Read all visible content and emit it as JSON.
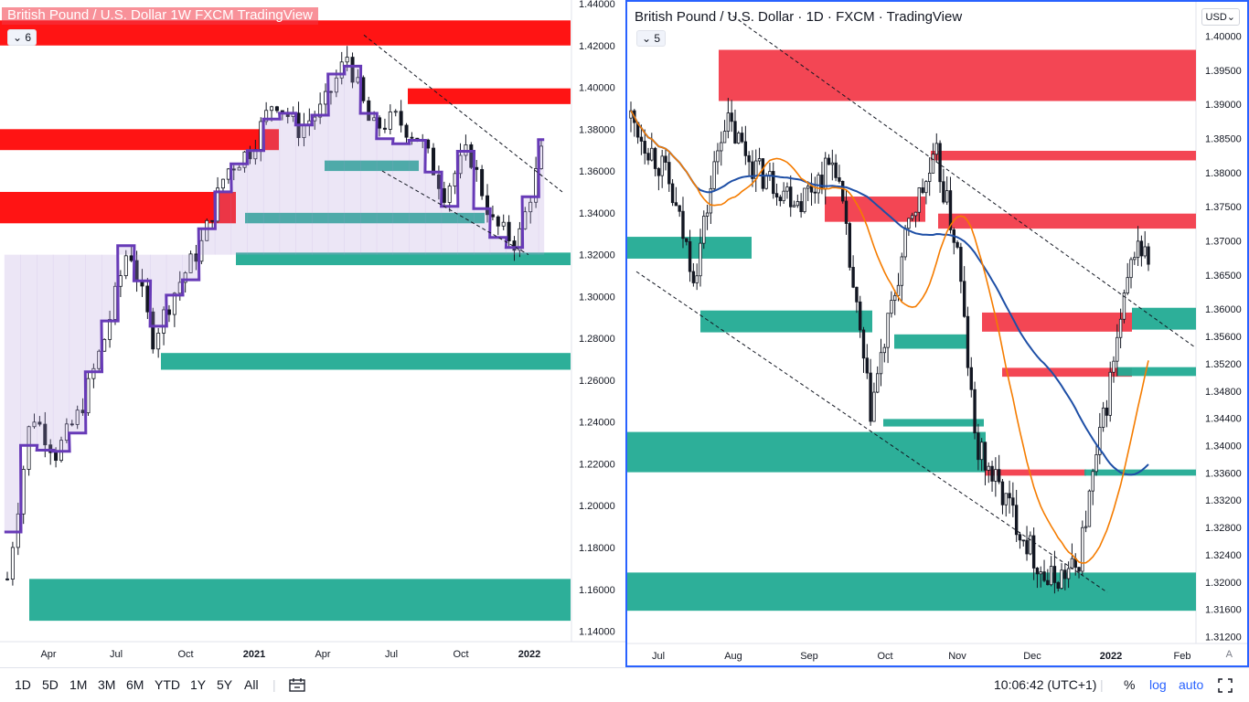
{
  "left": {
    "legend": "British Pound / U.S. Dollar   1W   FXCM   TradingView",
    "badge": "6",
    "y_labels": [
      "1.44000",
      "1.42000",
      "1.40000",
      "1.38000",
      "1.36000",
      "1.34000",
      "1.32000",
      "1.30000",
      "1.28000",
      "1.26000",
      "1.24000",
      "1.22000",
      "1.20000",
      "1.18000",
      "1.16000",
      "1.14000"
    ],
    "x_labels": [
      "Apr",
      "Jul",
      "Oct",
      "2021",
      "Apr",
      "Jul",
      "Oct",
      "2022"
    ]
  },
  "right": {
    "legend": "British Pound / U.S. Dollar · 1D · FXCM · TradingView",
    "badge": "5",
    "currency": "USD",
    "auto_label": "A",
    "y_labels": [
      "1.40000",
      "1.39500",
      "1.39000",
      "1.38500",
      "1.38000",
      "1.37500",
      "1.37000",
      "1.36500",
      "1.36000",
      "1.35600",
      "1.35200",
      "1.34800",
      "1.34400",
      "1.34000",
      "1.33600",
      "1.33200",
      "1.32800",
      "1.32400",
      "1.32000",
      "1.31600",
      "1.31200"
    ],
    "x_labels": [
      "Jul",
      "Aug",
      "Sep",
      "Oct",
      "Nov",
      "Dec",
      "2022",
      "Feb"
    ]
  },
  "bottom": {
    "timeframes": [
      "1D",
      "5D",
      "1M",
      "3M",
      "6M",
      "YTD",
      "1Y",
      "5Y",
      "All"
    ],
    "compare_icon": "calendar-range-icon",
    "clock": "10:06:42 (UTC+1)",
    "percent": "%",
    "log": "log",
    "auto": "auto",
    "fullscreen_icon": "fullscreen-icon"
  },
  "colors": {
    "supply": "#f23645",
    "demand": "#22ab94",
    "ma_fast": "#f57c00",
    "ma_slow": "#1e4fa6",
    "heikin": "#673ab7",
    "candle": "#131722"
  },
  "chart_data": [
    {
      "type": "candlestick",
      "timeframe": "1W",
      "symbol": "GBPUSD",
      "ylim": [
        1.135,
        1.44
      ],
      "x_ticks": [
        "Apr",
        "Jul",
        "Oct",
        "2021",
        "Apr",
        "Jul",
        "Oct",
        "2022"
      ],
      "close_path": [
        [
          "2020-03",
          1.165
        ],
        [
          "2020-04",
          1.245
        ],
        [
          "2020-05",
          1.225
        ],
        [
          "2020-06",
          1.245
        ],
        [
          "2020-07",
          1.28
        ],
        [
          "2020-08",
          1.325
        ],
        [
          "2020-09",
          1.28
        ],
        [
          "2020-10",
          1.305
        ],
        [
          "2020-11",
          1.325
        ],
        [
          "2020-12",
          1.36
        ],
        [
          "2021-01",
          1.37
        ],
        [
          "2021-02",
          1.395
        ],
        [
          "2021-03",
          1.38
        ],
        [
          "2021-04",
          1.39
        ],
        [
          "2021-05",
          1.415
        ],
        [
          "2021-06",
          1.38
        ],
        [
          "2021-07",
          1.385
        ],
        [
          "2021-08",
          1.375
        ],
        [
          "2021-09",
          1.35
        ],
        [
          "2021-10",
          1.37
        ],
        [
          "2021-11",
          1.335
        ],
        [
          "2021-12",
          1.325
        ],
        [
          "2022-01",
          1.368
        ]
      ],
      "zones": [
        {
          "kind": "supply",
          "top": 1.432,
          "bottom": 1.42
        },
        {
          "kind": "supply",
          "top": 1.3995,
          "bottom": 1.392
        },
        {
          "kind": "supply",
          "top": 1.38,
          "bottom": 1.37
        },
        {
          "kind": "supply",
          "top": 1.35,
          "bottom": 1.335
        },
        {
          "kind": "demand",
          "top": 1.365,
          "bottom": 1.36
        },
        {
          "kind": "demand",
          "top": 1.34,
          "bottom": 1.335
        },
        {
          "kind": "demand",
          "top": 1.321,
          "bottom": 1.315
        },
        {
          "kind": "demand",
          "top": 1.273,
          "bottom": 1.265
        },
        {
          "kind": "demand",
          "top": 1.165,
          "bottom": 1.145
        }
      ]
    },
    {
      "type": "candlestick",
      "timeframe": "1D",
      "symbol": "GBPUSD",
      "ylim": [
        1.311,
        1.4045
      ],
      "x_ticks": [
        "Jul",
        "Aug",
        "Sep",
        "Oct",
        "Nov",
        "Dec",
        "2022",
        "Feb"
      ],
      "close_path": [
        [
          "2021-06-25",
          1.388
        ],
        [
          "2021-07-08",
          1.38
        ],
        [
          "2021-07-20",
          1.365
        ],
        [
          "2021-08-01",
          1.388
        ],
        [
          "2021-08-15",
          1.38
        ],
        [
          "2021-09-01",
          1.376
        ],
        [
          "2021-09-15",
          1.382
        ],
        [
          "2021-09-29",
          1.345
        ],
        [
          "2021-10-15",
          1.374
        ],
        [
          "2021-10-25",
          1.382
        ],
        [
          "2021-11-03",
          1.368
        ],
        [
          "2021-11-10",
          1.34
        ],
        [
          "2021-11-25",
          1.33
        ],
        [
          "2021-12-08",
          1.32
        ],
        [
          "2021-12-20",
          1.322
        ],
        [
          "2022-01-04",
          1.352
        ],
        [
          "2022-01-13",
          1.37
        ],
        [
          "2022-01-18",
          1.367
        ]
      ],
      "zones": [
        {
          "kind": "supply",
          "top": 1.398,
          "bottom": 1.3905
        },
        {
          "kind": "supply",
          "top": 1.3832,
          "bottom": 1.3818
        },
        {
          "kind": "supply",
          "top": 1.3765,
          "bottom": 1.3728
        },
        {
          "kind": "supply",
          "top": 1.374,
          "bottom": 1.3718
        },
        {
          "kind": "supply",
          "top": 1.3595,
          "bottom": 1.3567
        },
        {
          "kind": "supply",
          "top": 1.3514,
          "bottom": 1.3501
        },
        {
          "kind": "supply",
          "top": 1.3365,
          "bottom": 1.3356
        },
        {
          "kind": "demand",
          "top": 1.3706,
          "bottom": 1.3674
        },
        {
          "kind": "demand",
          "top": 1.3598,
          "bottom": 1.3566
        },
        {
          "kind": "demand",
          "top": 1.3563,
          "bottom": 1.3542
        },
        {
          "kind": "demand",
          "top": 1.3602,
          "bottom": 1.357
        },
        {
          "kind": "demand",
          "top": 1.3515,
          "bottom": 1.3502
        },
        {
          "kind": "demand",
          "top": 1.3439,
          "bottom": 1.3428
        },
        {
          "kind": "demand",
          "top": 1.342,
          "bottom": 1.3361
        },
        {
          "kind": "demand",
          "top": 1.3365,
          "bottom": 1.3356
        },
        {
          "kind": "demand",
          "top": 1.3214,
          "bottom": 1.3158
        }
      ]
    }
  ]
}
